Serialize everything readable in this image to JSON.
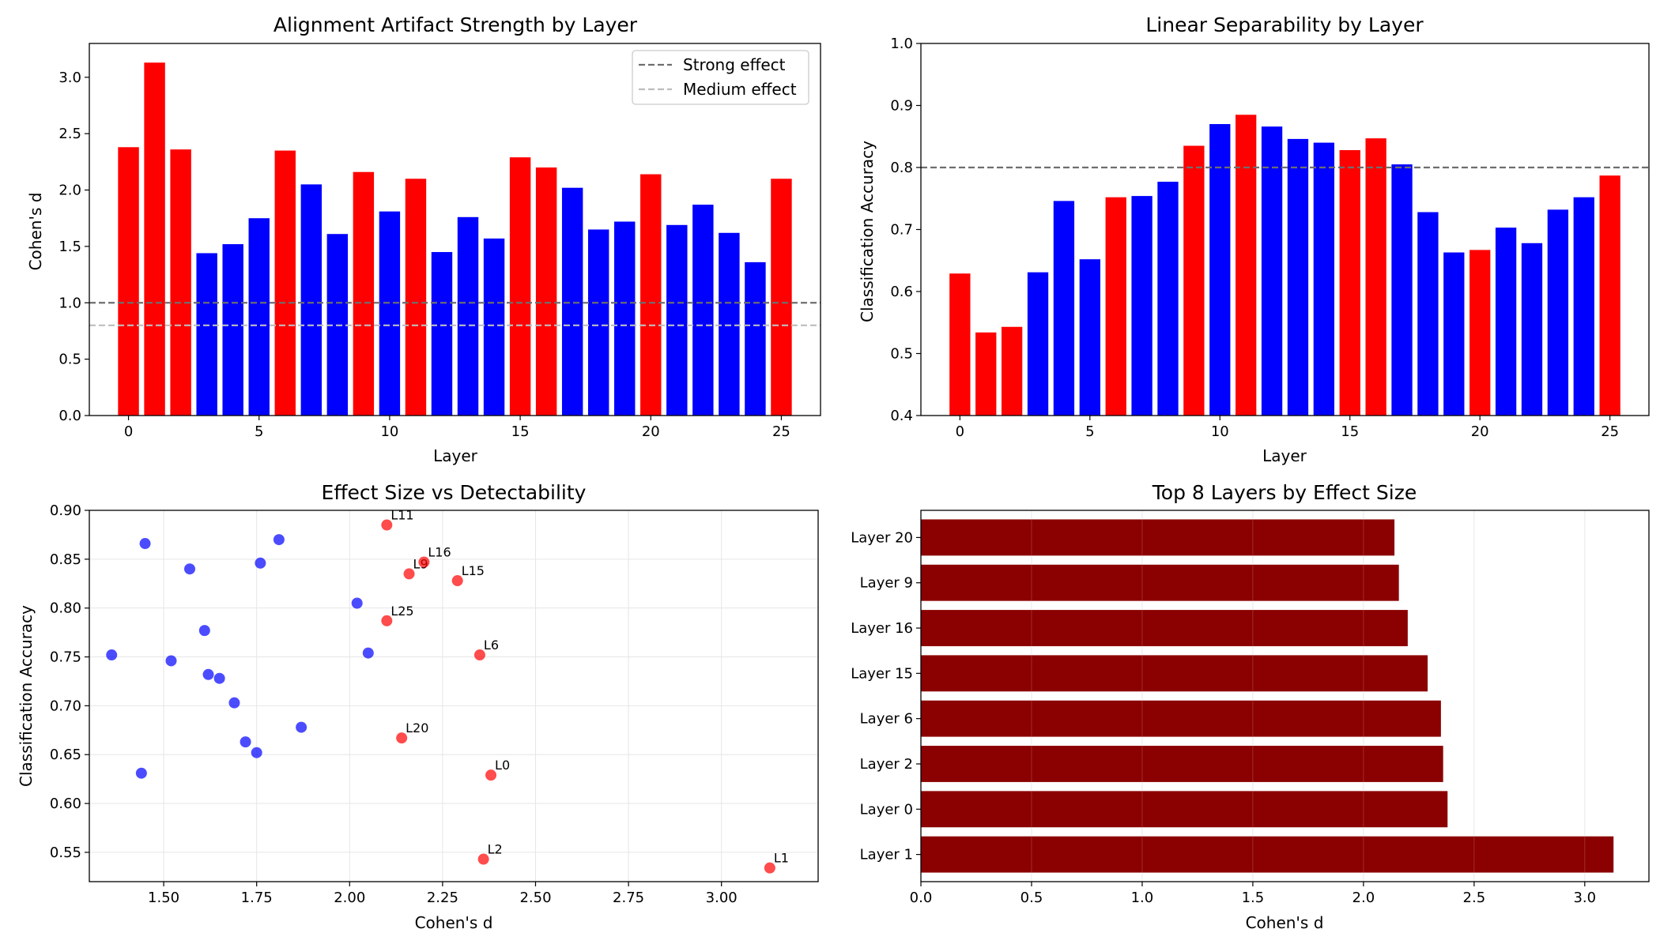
{
  "chart_data": [
    {
      "type": "bar",
      "title": "Alignment Artifact Strength by Layer",
      "xlabel": "Layer",
      "ylabel": "Cohen's d",
      "xlim": [
        -1.5,
        26.5
      ],
      "ylim": [
        0,
        3.3
      ],
      "xticks": [
        0,
        5,
        10,
        15,
        20,
        25
      ],
      "xtick_labels": [
        "0",
        "5",
        "10",
        "15",
        "20",
        "25"
      ],
      "yticks": [
        0,
        0.5,
        1.0,
        1.5,
        2.0,
        2.5,
        3.0
      ],
      "ytick_labels": [
        "0.0",
        "0.5",
        "1.0",
        "1.5",
        "2.0",
        "2.5",
        "3.0"
      ],
      "categories": [
        0,
        1,
        2,
        3,
        4,
        5,
        6,
        7,
        8,
        9,
        10,
        11,
        12,
        13,
        14,
        15,
        16,
        17,
        18,
        19,
        20,
        21,
        22,
        23,
        24,
        25
      ],
      "values": [
        2.38,
        3.13,
        2.36,
        1.44,
        1.52,
        1.75,
        2.35,
        2.05,
        1.61,
        2.16,
        1.81,
        2.1,
        1.45,
        1.76,
        1.57,
        2.29,
        2.2,
        2.02,
        1.65,
        1.72,
        2.14,
        1.69,
        1.87,
        1.62,
        1.36,
        2.1
      ],
      "bar_colors": [
        "red",
        "red",
        "red",
        "blue",
        "blue",
        "blue",
        "red",
        "blue",
        "blue",
        "red",
        "blue",
        "red",
        "blue",
        "blue",
        "blue",
        "red",
        "red",
        "blue",
        "blue",
        "blue",
        "red",
        "blue",
        "blue",
        "blue",
        "blue",
        "red"
      ],
      "reference_lines": [
        {
          "name": "Strong effect",
          "y": 1.0,
          "color": "#6e6e6e"
        },
        {
          "name": "Medium effect",
          "y": 0.8,
          "color": "#bdbdbd"
        }
      ],
      "legend_position": "top-right",
      "grid": false
    },
    {
      "type": "bar",
      "title": "Linear Separability by Layer",
      "xlabel": "Layer",
      "ylabel": "Classification Accuracy",
      "xlim": [
        -1.5,
        26.5
      ],
      "ylim": [
        0.4,
        1.0
      ],
      "xticks": [
        0,
        5,
        10,
        15,
        20,
        25
      ],
      "xtick_labels": [
        "0",
        "5",
        "10",
        "15",
        "20",
        "25"
      ],
      "yticks": [
        0.4,
        0.5,
        0.6,
        0.7,
        0.8,
        0.9,
        1.0
      ],
      "ytick_labels": [
        "0.4",
        "0.5",
        "0.6",
        "0.7",
        "0.8",
        "0.9",
        "1.0"
      ],
      "categories": [
        0,
        1,
        2,
        3,
        4,
        5,
        6,
        7,
        8,
        9,
        10,
        11,
        12,
        13,
        14,
        15,
        16,
        17,
        18,
        19,
        20,
        21,
        22,
        23,
        24,
        25
      ],
      "values": [
        0.629,
        0.534,
        0.543,
        0.631,
        0.746,
        0.652,
        0.752,
        0.754,
        0.777,
        0.835,
        0.87,
        0.885,
        0.866,
        0.846,
        0.84,
        0.828,
        0.847,
        0.805,
        0.728,
        0.663,
        0.667,
        0.703,
        0.678,
        0.732,
        0.752,
        0.787
      ],
      "bar_colors": [
        "red",
        "red",
        "red",
        "blue",
        "blue",
        "blue",
        "red",
        "blue",
        "blue",
        "red",
        "blue",
        "red",
        "blue",
        "blue",
        "blue",
        "red",
        "red",
        "blue",
        "blue",
        "blue",
        "red",
        "blue",
        "blue",
        "blue",
        "blue",
        "red"
      ],
      "reference_lines": [
        {
          "y": 0.8,
          "color": "#6e6e6e"
        }
      ],
      "grid": false
    },
    {
      "type": "scatter",
      "title": "Effect Size vs Detectability",
      "xlabel": "Cohen's d",
      "ylabel": "Classification Accuracy",
      "xlim": [
        1.3,
        3.26
      ],
      "ylim": [
        0.52,
        0.9
      ],
      "xticks": [
        1.5,
        1.75,
        2.0,
        2.25,
        2.5,
        2.75,
        3.0
      ],
      "xtick_labels": [
        "1.50",
        "1.75",
        "2.00",
        "2.25",
        "2.50",
        "2.75",
        "3.00"
      ],
      "yticks": [
        0.55,
        0.6,
        0.65,
        0.7,
        0.75,
        0.8,
        0.85,
        0.9
      ],
      "ytick_labels": [
        "0.55",
        "0.60",
        "0.65",
        "0.70",
        "0.75",
        "0.80",
        "0.85",
        "0.90"
      ],
      "grid": true,
      "points": [
        {
          "x": 2.38,
          "y": 0.629,
          "color": "red",
          "label": "L0"
        },
        {
          "x": 3.13,
          "y": 0.534,
          "color": "red",
          "label": "L1"
        },
        {
          "x": 2.36,
          "y": 0.543,
          "color": "red",
          "label": "L2"
        },
        {
          "x": 1.44,
          "y": 0.631,
          "color": "blue",
          "label": ""
        },
        {
          "x": 1.52,
          "y": 0.746,
          "color": "blue",
          "label": ""
        },
        {
          "x": 1.75,
          "y": 0.652,
          "color": "blue",
          "label": ""
        },
        {
          "x": 2.35,
          "y": 0.752,
          "color": "red",
          "label": "L6"
        },
        {
          "x": 2.05,
          "y": 0.754,
          "color": "blue",
          "label": ""
        },
        {
          "x": 1.61,
          "y": 0.777,
          "color": "blue",
          "label": ""
        },
        {
          "x": 2.16,
          "y": 0.835,
          "color": "red",
          "label": "L9"
        },
        {
          "x": 1.81,
          "y": 0.87,
          "color": "blue",
          "label": ""
        },
        {
          "x": 2.1,
          "y": 0.885,
          "color": "red",
          "label": "L11"
        },
        {
          "x": 1.45,
          "y": 0.866,
          "color": "blue",
          "label": ""
        },
        {
          "x": 1.76,
          "y": 0.846,
          "color": "blue",
          "label": ""
        },
        {
          "x": 1.57,
          "y": 0.84,
          "color": "blue",
          "label": ""
        },
        {
          "x": 2.29,
          "y": 0.828,
          "color": "red",
          "label": "L15"
        },
        {
          "x": 2.2,
          "y": 0.847,
          "color": "red",
          "label": "L16"
        },
        {
          "x": 2.02,
          "y": 0.805,
          "color": "blue",
          "label": ""
        },
        {
          "x": 1.65,
          "y": 0.728,
          "color": "blue",
          "label": ""
        },
        {
          "x": 1.72,
          "y": 0.663,
          "color": "blue",
          "label": ""
        },
        {
          "x": 2.14,
          "y": 0.667,
          "color": "red",
          "label": "L20"
        },
        {
          "x": 1.69,
          "y": 0.703,
          "color": "blue",
          "label": ""
        },
        {
          "x": 1.87,
          "y": 0.678,
          "color": "blue",
          "label": ""
        },
        {
          "x": 1.62,
          "y": 0.732,
          "color": "blue",
          "label": ""
        },
        {
          "x": 1.36,
          "y": 0.752,
          "color": "blue",
          "label": ""
        },
        {
          "x": 2.1,
          "y": 0.787,
          "color": "red",
          "label": "L25"
        }
      ]
    },
    {
      "type": "bar",
      "orientation": "horizontal",
      "title": "Top 8 Layers by Effect Size",
      "xlabel": "Cohen's d",
      "ylabel": "",
      "xlim": [
        0,
        3.29
      ],
      "xticks": [
        0,
        0.5,
        1.0,
        1.5,
        2.0,
        2.5,
        3.0
      ],
      "xtick_labels": [
        "0.0",
        "0.5",
        "1.0",
        "1.5",
        "2.0",
        "2.5",
        "3.0"
      ],
      "categories": [
        "Layer 1",
        "Layer 0",
        "Layer 2",
        "Layer 6",
        "Layer 15",
        "Layer 16",
        "Layer 9",
        "Layer 20"
      ],
      "values": [
        3.13,
        2.38,
        2.36,
        2.35,
        2.29,
        2.2,
        2.16,
        2.14
      ],
      "bar_color": "#8b0000",
      "grid": true
    }
  ]
}
